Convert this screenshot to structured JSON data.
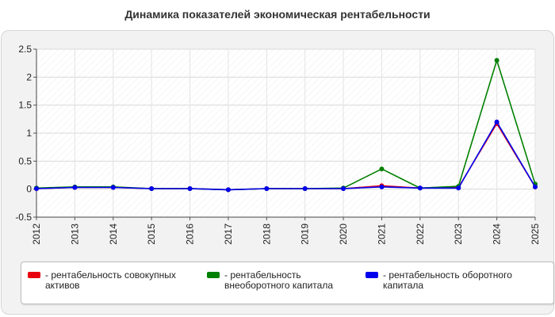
{
  "chart_data": {
    "type": "line",
    "title": "Динамика показателей экономическая рентабельности",
    "xlabel": "",
    "ylabel": "",
    "x": [
      "2012",
      "2013",
      "2014",
      "2015",
      "2016",
      "2017",
      "2018",
      "2019",
      "2020",
      "2021",
      "2022",
      "2023",
      "2024",
      "2025"
    ],
    "ylim": [
      -0.5,
      2.5
    ],
    "yticks": [
      "-0.5",
      "0",
      "0.5",
      "1",
      "1.5",
      "2",
      "2.5"
    ],
    "grid": true,
    "legend_position": "bottom",
    "series": [
      {
        "name": "- рентабельность совокупных активов",
        "color": "#e8000f",
        "values": [
          0.01,
          0.03,
          0.03,
          0.01,
          0.01,
          -0.01,
          0.01,
          0.01,
          0.01,
          0.06,
          0.02,
          0.03,
          1.17,
          0.04
        ]
      },
      {
        "name": "- рентабельность внеоборотного капитала",
        "color": "#008000",
        "values": [
          0.02,
          0.04,
          0.04,
          0.01,
          0.01,
          -0.01,
          0.01,
          0.01,
          0.02,
          0.36,
          0.02,
          0.05,
          2.3,
          0.09
        ]
      },
      {
        "name": "- рентабельность оборотного капитала",
        "color": "#0000ee",
        "values": [
          0.01,
          0.03,
          0.03,
          0.01,
          0.01,
          -0.01,
          0.01,
          0.01,
          0.01,
          0.04,
          0.02,
          0.02,
          1.2,
          0.04
        ]
      }
    ]
  }
}
